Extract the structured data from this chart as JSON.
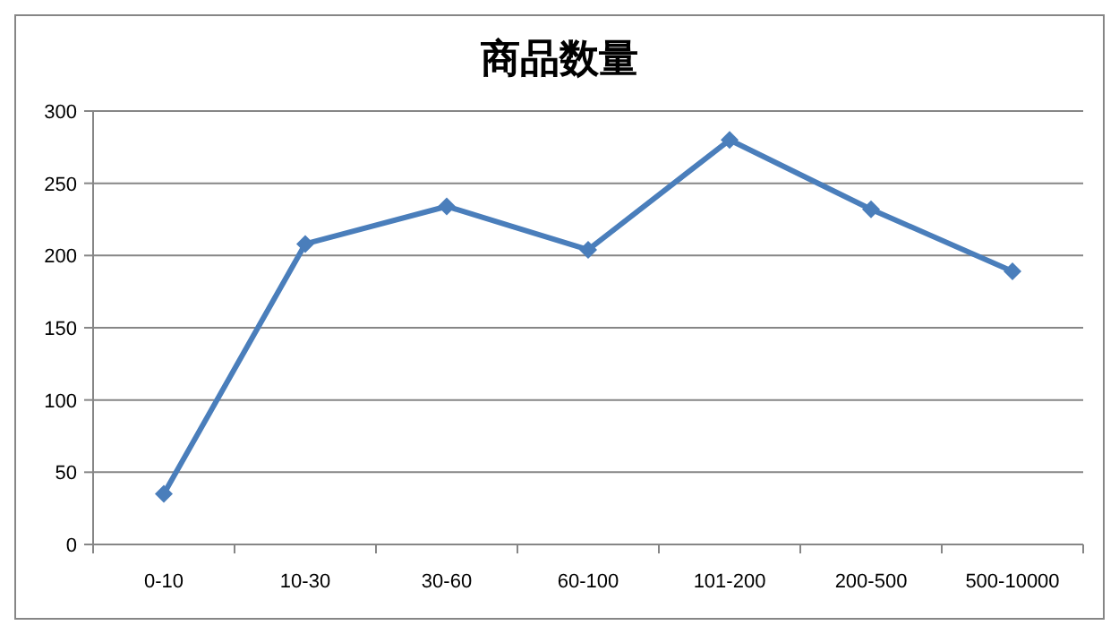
{
  "chart_data": {
    "type": "line",
    "title": "商品数量",
    "categories": [
      "0-10",
      "10-30",
      "30-60",
      "60-100",
      "101-200",
      "200-500",
      "500-10000"
    ],
    "series": [
      {
        "color": "#4a7ebb",
        "values": [
          35,
          208,
          234,
          204,
          280,
          232,
          189
        ]
      }
    ],
    "ylim": [
      0,
      300
    ],
    "yticks": [
      0,
      50,
      100,
      150,
      200,
      250,
      300
    ],
    "grid": "y",
    "marker": "diamond",
    "line_style": "solid"
  }
}
